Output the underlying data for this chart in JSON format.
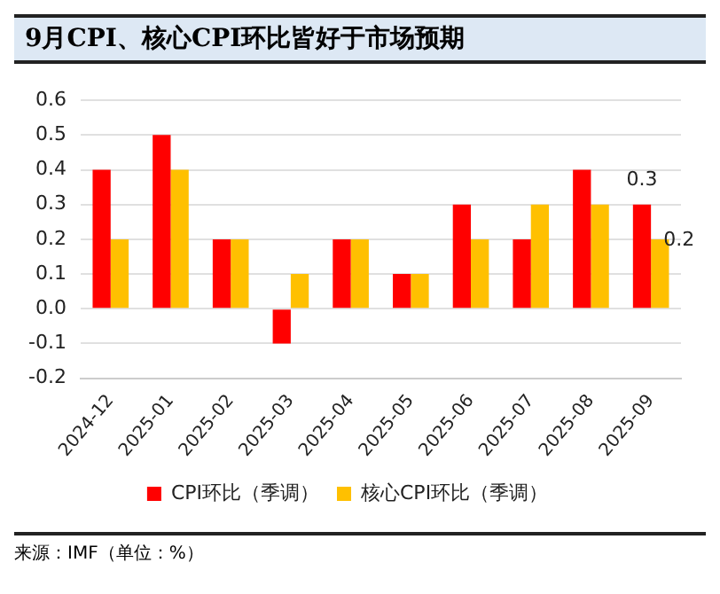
{
  "chart_data": {
    "type": "bar",
    "title": "9月CPI、核心CPI环比皆好于市场预期",
    "categories": [
      "2024-12",
      "2025-01",
      "2025-02",
      "2025-03",
      "2025-04",
      "2025-05",
      "2025-06",
      "2025-07",
      "2025-08",
      "2025-09"
    ],
    "series": [
      {
        "name": "CPI环比（季调）",
        "color": "#ff0000",
        "values": [
          0.4,
          0.5,
          0.2,
          -0.1,
          0.2,
          0.1,
          0.3,
          0.2,
          0.4,
          0.3
        ],
        "value_labels": [
          null,
          null,
          null,
          null,
          null,
          null,
          null,
          null,
          null,
          "0.3"
        ]
      },
      {
        "name": "核心CPI环比（季调）",
        "color": "#ffc000",
        "values": [
          0.2,
          0.4,
          0.2,
          0.1,
          0.2,
          0.1,
          0.2,
          0.3,
          0.3,
          0.2
        ],
        "value_labels": [
          null,
          null,
          null,
          null,
          null,
          null,
          null,
          null,
          null,
          "0.2"
        ]
      }
    ],
    "ylim": [
      -0.2,
      0.6
    ],
    "yticks": [
      -0.2,
      -0.1,
      {
        "value": 0,
        "label": "0.0"
      },
      0.1,
      0.2,
      0.3,
      0.4,
      0.5,
      0.6
    ],
    "grid": "y",
    "legend": "bottom",
    "annotations": [
      "来源：IMF（单位：%）"
    ]
  }
}
